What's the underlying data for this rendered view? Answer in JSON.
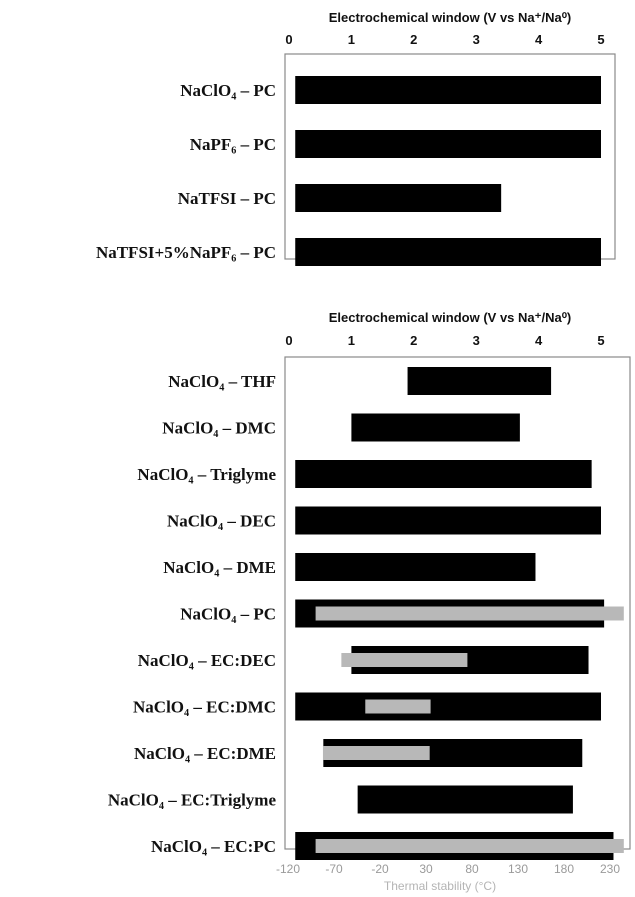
{
  "chart_data": [
    {
      "type": "bar",
      "orientation": "horizontal-range",
      "xlabel": "Electrochemical window (V vs Na⁺/Na⁰)",
      "xlim": [
        0,
        5.5
      ],
      "xticks": [
        "0",
        "1",
        "2",
        "3",
        "4",
        "5"
      ],
      "categories": [
        "NaClO₄ – PC",
        "NaPF₆ – PC",
        "NaTFSI – PC",
        "NaTFSI+5%NaPF₆ – PC"
      ],
      "series": [
        {
          "color": "#000000",
          "ranges": [
            [
              0.1,
              5.0
            ],
            [
              0.1,
              5.0
            ],
            [
              0.1,
              3.4
            ],
            [
              0.1,
              5.0
            ]
          ]
        }
      ]
    },
    {
      "type": "bar",
      "orientation": "horizontal-range",
      "xlabel": "Electrochemical window (V vs Na⁺/Na⁰)",
      "xlim": [
        0,
        5.5
      ],
      "xticks": [
        "0",
        "1",
        "2",
        "3",
        "4",
        "5"
      ],
      "x2label": "Thermal stability (°C)",
      "x2lim": [
        -130,
        250
      ],
      "x2ticks": [
        "-120",
        "-70",
        "-20",
        "30",
        "80",
        "130",
        "180",
        "230"
      ],
      "categories": [
        "NaClO₄ – THF",
        "NaClO₄ – DMC",
        "NaClO₄ – Triglyme",
        "NaClO₄ – DEC",
        "NaClO₄ – DME",
        "NaClO₄ – PC",
        "NaClO₄ – EC:DEC",
        "NaClO₄ – EC:DMC",
        "NaClO₄ – EC:DME",
        "NaClO₄ – EC:Triglyme",
        "NaClO₄ – EC:PC"
      ],
      "series": [
        {
          "color": "#000000",
          "ranges": [
            [
              1.9,
              4.2
            ],
            [
              1.0,
              3.7
            ],
            [
              0.1,
              4.85
            ],
            [
              0.1,
              5.0
            ],
            [
              0.1,
              3.95
            ],
            [
              0.1,
              5.05
            ],
            [
              1.0,
              4.8
            ],
            [
              0.1,
              5.0
            ],
            [
              0.55,
              4.7
            ],
            [
              1.1,
              4.55
            ],
            [
              0.1,
              5.2
            ]
          ]
        },
        {
          "color": "#b8b8b8",
          "ranges": [
            null,
            null,
            null,
            null,
            null,
            [
              -90,
              245
            ],
            [
              -62,
              75
            ],
            [
              -36,
              35
            ],
            [
              -82,
              34
            ],
            null,
            [
              -90,
              245
            ]
          ]
        }
      ]
    }
  ]
}
